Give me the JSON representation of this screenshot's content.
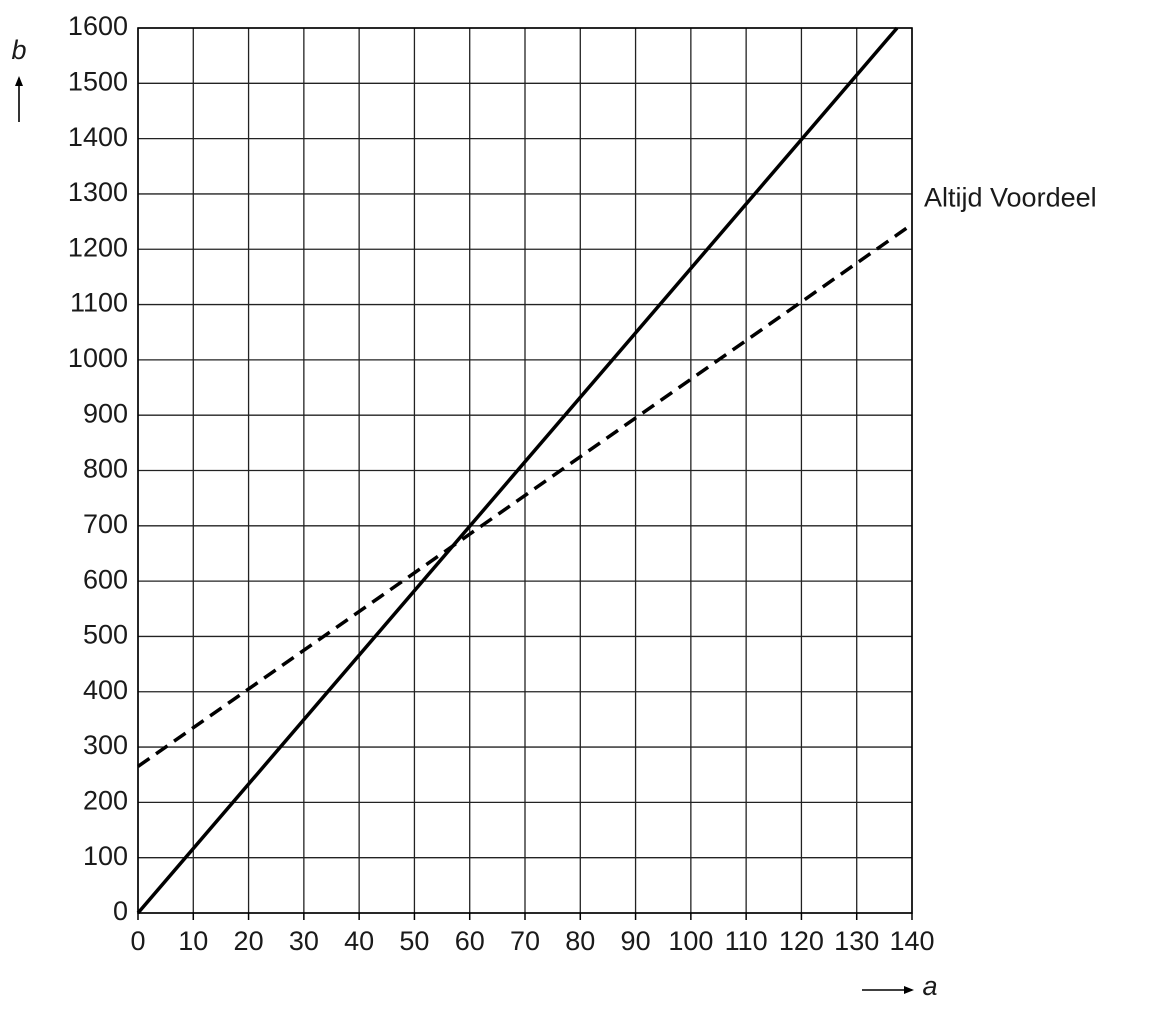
{
  "chart_data": {
    "type": "line",
    "x_label": "a",
    "y_label": "b",
    "x": [
      0,
      137.3,
      140
    ],
    "series": [
      {
        "color": "#000000",
        "line_style": "solid",
        "values": [
          0,
          1600,
          null
        ]
      },
      {
        "name": "Altijd Voordeel",
        "color": "#000000",
        "line_style": "dashed",
        "values": [
          265,
          1226,
          1245
        ]
      }
    ],
    "xlim": [
      0,
      140
    ],
    "xticks": [
      0,
      10,
      20,
      30,
      40,
      50,
      60,
      70,
      80,
      90,
      100,
      110,
      120,
      130,
      140
    ],
    "ylim": [
      0,
      1600
    ],
    "yticks": [
      0,
      100,
      200,
      300,
      400,
      500,
      600,
      700,
      800,
      900,
      1000,
      1100,
      1200,
      1300,
      1400,
      1500,
      1600
    ],
    "grid": true
  }
}
